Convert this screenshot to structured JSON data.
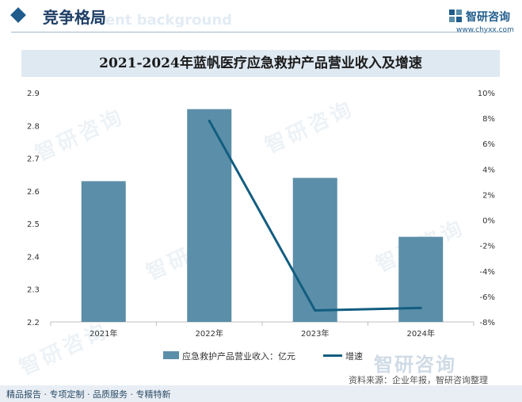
{
  "header": {
    "section_title": "竞争格局",
    "ghost_text": "nent background",
    "brand_name": "智研咨询",
    "brand_url": "www.chyxx.com"
  },
  "chart_data": {
    "type": "bar",
    "title": "2021-2024年蓝帆医疗应急救护产品营业收入及增速",
    "categories": [
      "2021年",
      "2022年",
      "2023年",
      "2024年"
    ],
    "series": [
      {
        "name": "应急救护产品营业收入：亿元",
        "type": "bar",
        "axis": "left",
        "values": [
          2.63,
          2.85,
          2.64,
          2.46
        ]
      },
      {
        "name": "增速",
        "type": "line",
        "axis": "right",
        "values": [
          null,
          7.8,
          -7.1,
          -6.9
        ]
      }
    ],
    "ylim_left": [
      2.2,
      2.9
    ],
    "yticks_left": [
      "2.2",
      "2.3",
      "2.4",
      "2.5",
      "2.6",
      "2.7",
      "2.8",
      "2.9"
    ],
    "ylim_right": [
      -8,
      10
    ],
    "yticks_right": [
      "-8%",
      "-6%",
      "-4%",
      "-2%",
      "0%",
      "2%",
      "4%",
      "6%",
      "8%",
      "10%"
    ],
    "grid": false,
    "legend_position": "bottom",
    "colors": {
      "bar": "#5b8ea8",
      "line": "#125d80"
    }
  },
  "watermark_text": "智研咨询",
  "source": "资料来源：企业年报，智研咨询整理",
  "footer": "精品报告 · 专项定制 · 品质服务 · 专精特新"
}
